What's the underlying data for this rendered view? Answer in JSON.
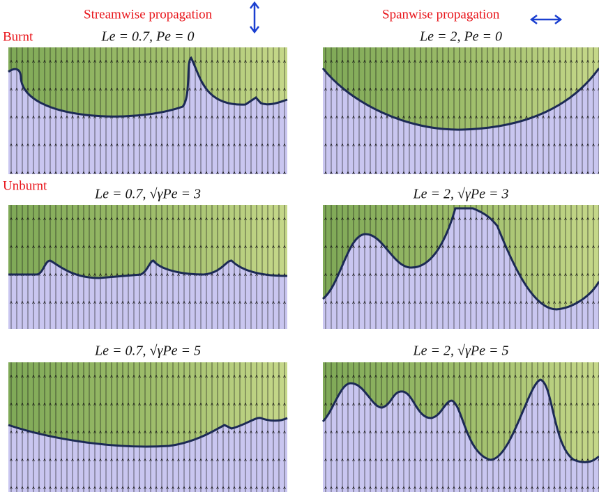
{
  "headers": {
    "left": "Streamwise propagation",
    "right": "Spanwise propagation"
  },
  "labels": {
    "burnt": "Burnt",
    "unburnt": "Unburnt"
  },
  "panels": [
    {
      "title": "Le = 0.7, Pe = 0"
    },
    {
      "title": "Le = 2, Pe = 0"
    },
    {
      "title": "Le = 0.7, √γPe = 3"
    },
    {
      "title": "Le = 2, √γPe = 3"
    },
    {
      "title": "Le = 0.7, √γPe = 5"
    },
    {
      "title": "Le = 2, √γPe = 5"
    }
  ]
}
